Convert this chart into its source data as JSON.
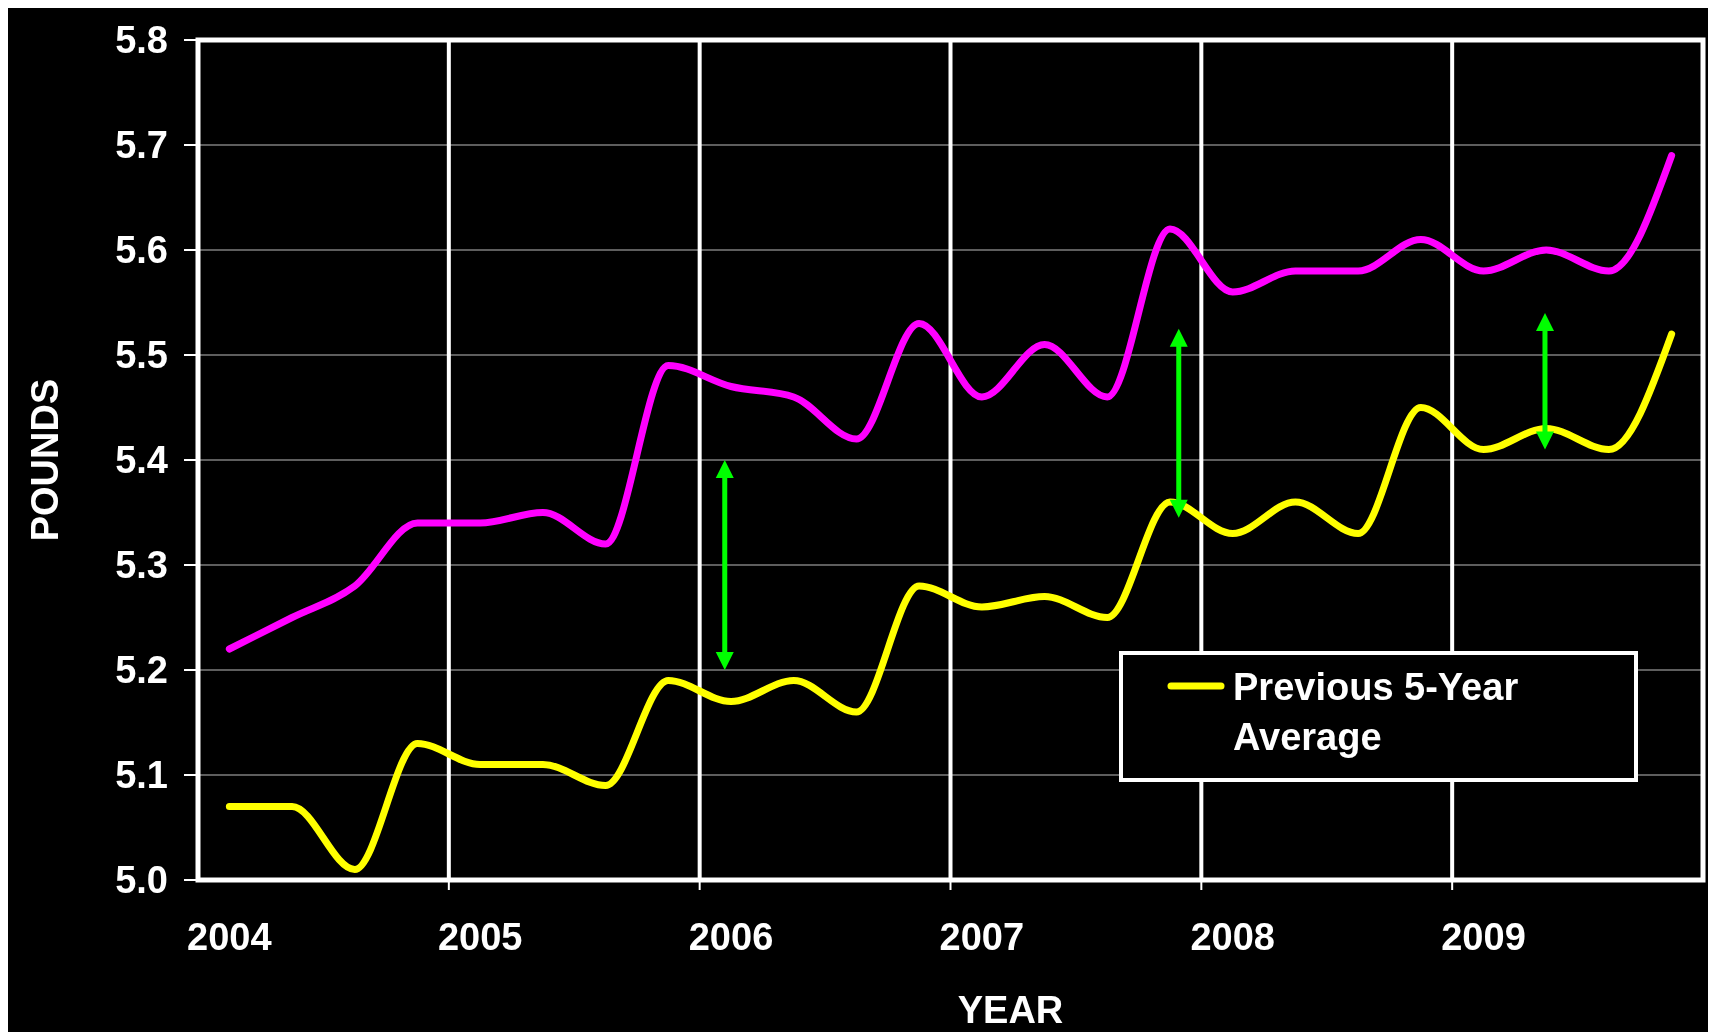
{
  "chart_data": {
    "type": "line",
    "xlabel": "YEAR",
    "ylabel": "POUNDS",
    "x": [
      2004,
      2004.25,
      2004.5,
      2004.75,
      2005,
      2005.25,
      2005.5,
      2005.75,
      2006,
      2006.25,
      2006.5,
      2006.75,
      2007,
      2007.25,
      2007.5,
      2007.75,
      2008,
      2008.25,
      2008.5,
      2008.75,
      2009,
      2009.25,
      2009.5,
      2009.75
    ],
    "series": [
      {
        "color": "#ff00ff",
        "values": [
          5.22,
          5.25,
          5.28,
          5.34,
          5.34,
          5.35,
          5.32,
          5.49,
          5.47,
          5.46,
          5.42,
          5.53,
          5.46,
          5.51,
          5.46,
          5.62,
          5.56,
          5.58,
          5.58,
          5.61,
          5.58,
          5.6,
          5.58,
          5.69
        ]
      },
      {
        "name": "Previous 5-Year Average",
        "color": "#ffff00",
        "values": [
          5.07,
          5.07,
          5.01,
          5.13,
          5.11,
          5.11,
          5.09,
          5.19,
          5.17,
          5.19,
          5.16,
          5.28,
          5.26,
          5.27,
          5.25,
          5.36,
          5.33,
          5.36,
          5.33,
          5.45,
          5.41,
          5.43,
          5.41,
          5.52
        ]
      }
    ],
    "xlim": [
      2003.875,
      2009.875
    ],
    "xticks": [
      2004,
      {
        "value": 2004.875,
        "label": null
      },
      2005,
      {
        "value": 2005.875,
        "label": null
      },
      2006,
      {
        "value": 2006.875,
        "label": null
      },
      2007,
      {
        "value": 2007.875,
        "label": null
      },
      2008,
      {
        "value": 2008.875,
        "label": null
      },
      2009
    ],
    "ylim": [
      5.0,
      5.8
    ],
    "yticks": [
      {
        "value": 5.0,
        "label": "5.0"
      },
      {
        "value": 5.1,
        "label": "5.1"
      },
      {
        "value": 5.2,
        "label": "5.2"
      },
      {
        "value": 5.3,
        "label": "5.3"
      },
      {
        "value": 5.4,
        "label": "5.4"
      },
      {
        "value": 5.5,
        "label": "5.5"
      },
      {
        "value": 5.6,
        "label": "5.6"
      },
      {
        "value": 5.7,
        "label": "5.7"
      },
      {
        "value": 5.8,
        "label": "5.8"
      }
    ],
    "grid": true,
    "legend": "bottom right",
    "marker": "none",
    "line_style": "solid"
  }
}
